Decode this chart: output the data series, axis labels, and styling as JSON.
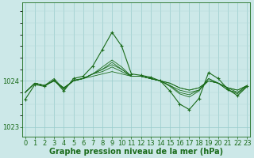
{
  "xlabel": "Graphe pression niveau de la mer (hPa)",
  "ylabel": "",
  "bg_color": "#cce8e8",
  "plot_bg_color": "#cce8e8",
  "grid_color_major": "#99cccc",
  "grid_color_minor": "#b3d9d9",
  "line_color": "#1a6b1a",
  "marker_color": "#1a6b1a",
  "ylim": [
    1022.8,
    1025.7
  ],
  "xlim": [
    -0.3,
    23.3
  ],
  "yticks": [
    1023,
    1024
  ],
  "xticks": [
    0,
    1,
    2,
    3,
    4,
    5,
    6,
    7,
    8,
    9,
    10,
    11,
    12,
    13,
    14,
    15,
    16,
    17,
    18,
    19,
    20,
    21,
    22,
    23
  ],
  "series": [
    [
      1023.75,
      1023.95,
      1023.9,
      1024.0,
      1023.85,
      1024.0,
      1024.05,
      1024.1,
      1024.15,
      1024.2,
      1024.15,
      1024.1,
      1024.1,
      1024.05,
      1024.0,
      1023.95,
      1023.85,
      1023.8,
      1023.85,
      1024.0,
      1023.95,
      1023.85,
      1023.8,
      1023.9
    ],
    [
      1023.75,
      1023.95,
      1023.9,
      1024.0,
      1023.85,
      1024.0,
      1024.05,
      1024.15,
      1024.2,
      1024.3,
      1024.2,
      1024.1,
      1024.1,
      1024.05,
      1024.0,
      1023.95,
      1023.85,
      1023.8,
      1023.85,
      1024.0,
      1023.95,
      1023.85,
      1023.8,
      1023.9
    ],
    [
      1023.75,
      1023.95,
      1023.9,
      1024.0,
      1023.85,
      1024.0,
      1024.05,
      1024.15,
      1024.25,
      1024.35,
      1024.25,
      1024.1,
      1024.1,
      1024.05,
      1024.0,
      1023.9,
      1023.8,
      1023.75,
      1023.8,
      1024.0,
      1023.95,
      1023.85,
      1023.75,
      1023.9
    ],
    [
      1023.75,
      1023.95,
      1023.9,
      1024.0,
      1023.82,
      1024.0,
      1024.05,
      1024.15,
      1024.25,
      1024.4,
      1024.25,
      1024.1,
      1024.1,
      1024.05,
      1024.0,
      1023.9,
      1023.75,
      1023.7,
      1023.8,
      1024.05,
      1023.95,
      1023.8,
      1023.75,
      1023.9
    ],
    [
      1023.75,
      1023.95,
      1023.9,
      1024.05,
      1023.82,
      1024.02,
      1024.05,
      1024.15,
      1024.3,
      1024.45,
      1024.3,
      1024.1,
      1024.1,
      1024.05,
      1024.0,
      1023.88,
      1023.72,
      1023.65,
      1023.78,
      1024.05,
      1023.95,
      1023.8,
      1023.72,
      1023.88
    ]
  ],
  "main_series": [
    1023.6,
    1023.92,
    1023.88,
    1024.02,
    1023.78,
    1024.05,
    1024.1,
    1024.32,
    1024.68,
    1025.05,
    1024.75,
    1024.15,
    1024.12,
    1024.08,
    1024.0,
    1023.78,
    1023.5,
    1023.38,
    1023.62,
    1024.18,
    1024.05,
    1023.82,
    1023.68,
    1023.88
  ],
  "xlabel_fontsize": 7.0,
  "tick_fontsize": 6.0,
  "ylabel_fontsize": 7,
  "figsize": [
    3.2,
    2.0
  ],
  "dpi": 100
}
